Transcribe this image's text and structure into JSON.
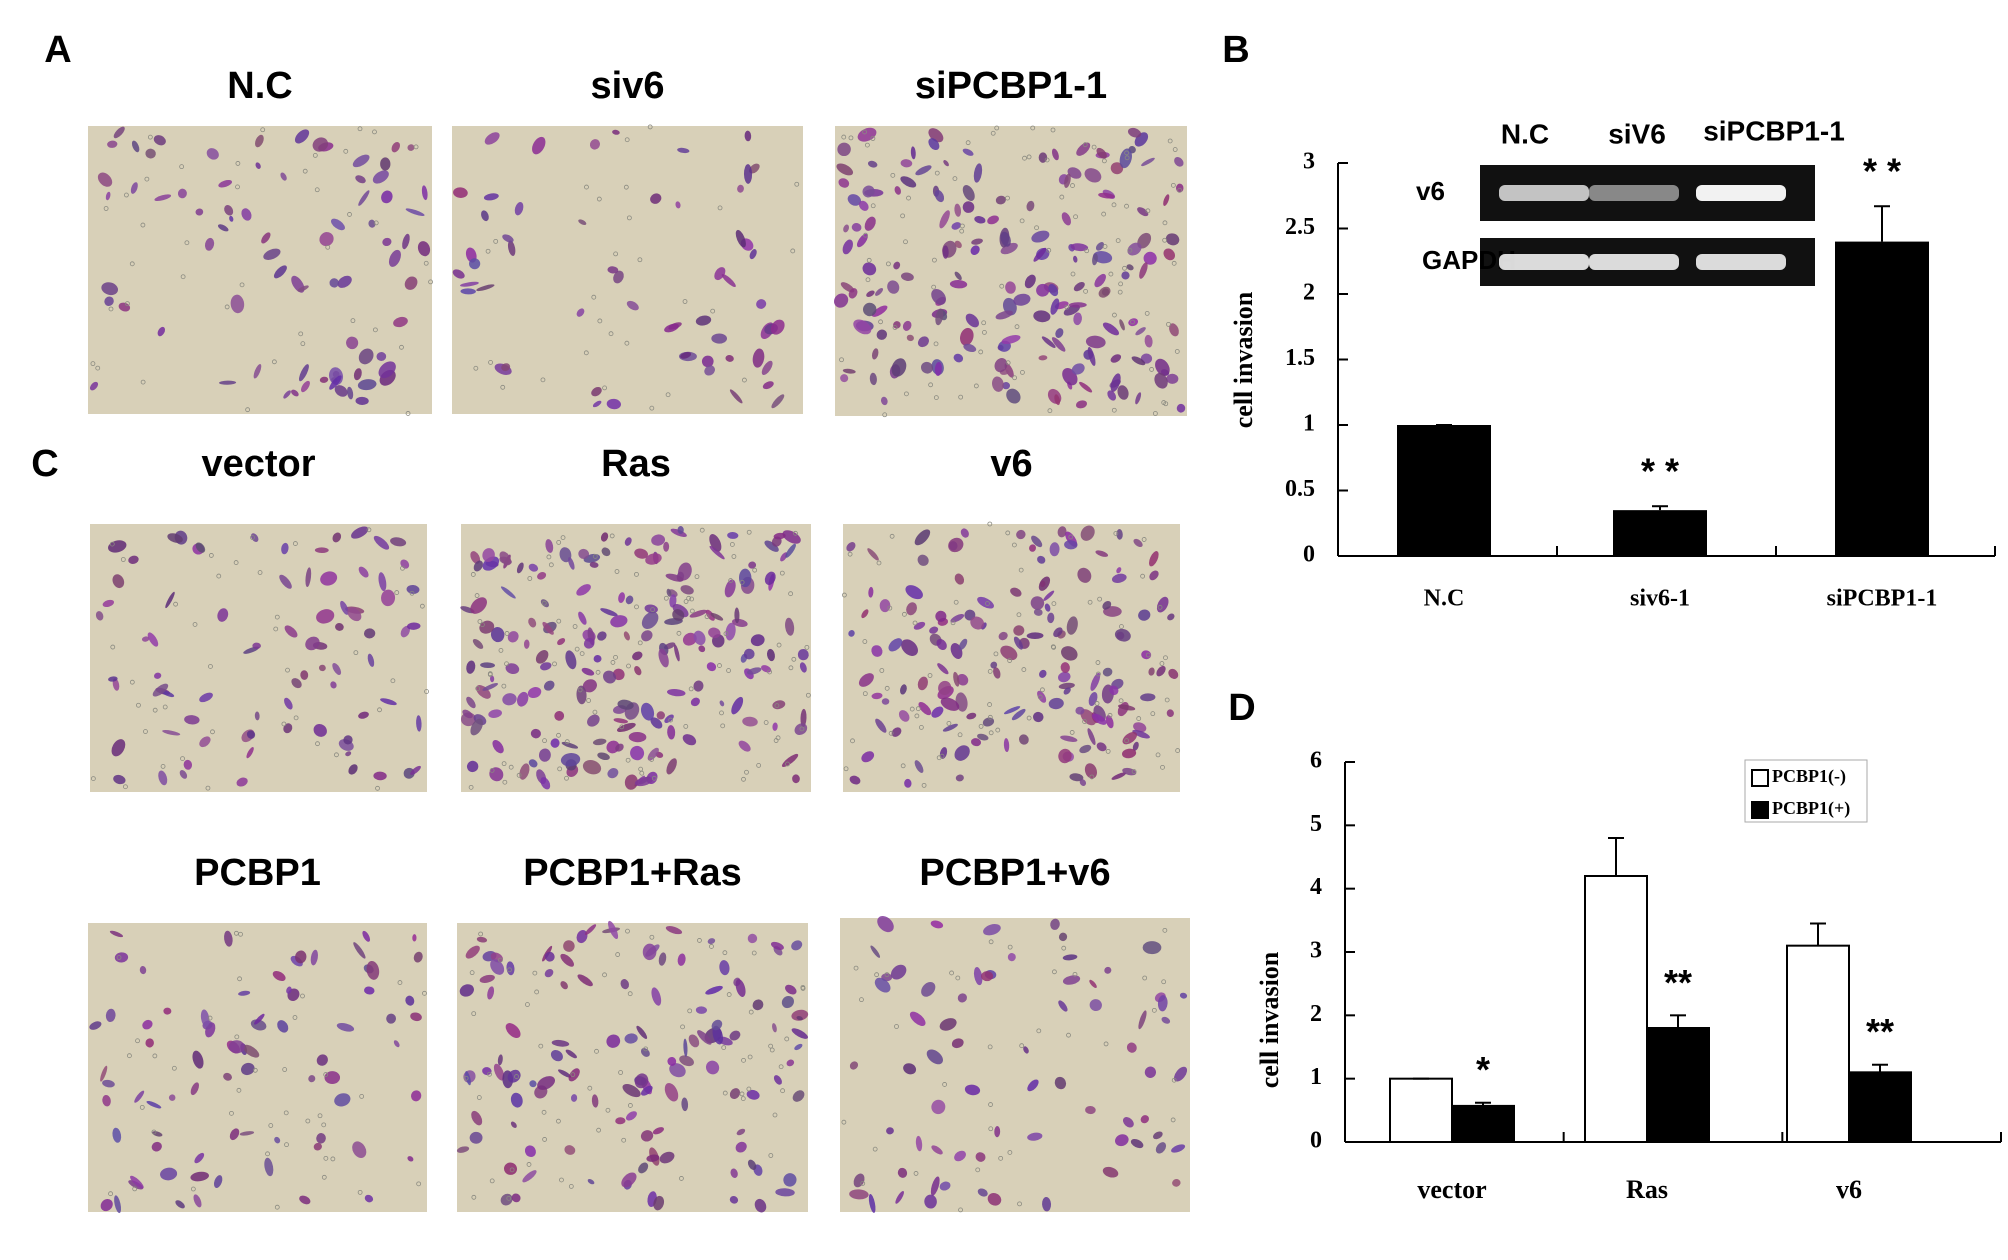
{
  "panel_labels": [
    "A",
    "B",
    "C",
    "D"
  ],
  "image_titles": [
    "N.C",
    "siv6",
    "siPCBP1-1",
    "vector",
    "Ras",
    "v6",
    "PCBP1",
    "PCBP1+Ras",
    "PCBP1+v6"
  ],
  "gel": {
    "lanes": [
      "N.C",
      "siV6",
      "siPCBP1-1"
    ],
    "rows": [
      "v6",
      "GAPDH"
    ]
  },
  "chart_data": [
    {
      "type": "bar",
      "y_label": "cell invasion",
      "categories": [
        "N.C",
        "siv6-1",
        "siPCBP1-1"
      ],
      "values": [
        1,
        0.35,
        2.4
      ],
      "errors": [
        0,
        0.03,
        0.27
      ],
      "color": "#000000",
      "annotations": [
        null,
        "* *",
        "* *"
      ],
      "ylim": [
        0,
        3
      ],
      "yticks": [
        0,
        0.5,
        1,
        1.5,
        2,
        2.5,
        3
      ]
    },
    {
      "type": "grouped-bar",
      "y_label": "cell invasion",
      "categories": [
        "vector",
        "Ras",
        "v6"
      ],
      "series": [
        {
          "name": "PCBP1(-)",
          "color": "#ffffff",
          "values": [
            1,
            4.2,
            3.1
          ],
          "errors": [
            0,
            0.6,
            0.35
          ]
        },
        {
          "name": "PCBP1(+)",
          "color": "#000000",
          "values": [
            0.57,
            1.8,
            1.1
          ],
          "errors": [
            0.05,
            0.2,
            0.12
          ],
          "annotations": [
            "*",
            "**",
            "**"
          ]
        }
      ],
      "ylim": [
        0,
        6
      ],
      "yticks": [
        0,
        1,
        2,
        3,
        4,
        5,
        6
      ],
      "legend": "upper right"
    }
  ]
}
